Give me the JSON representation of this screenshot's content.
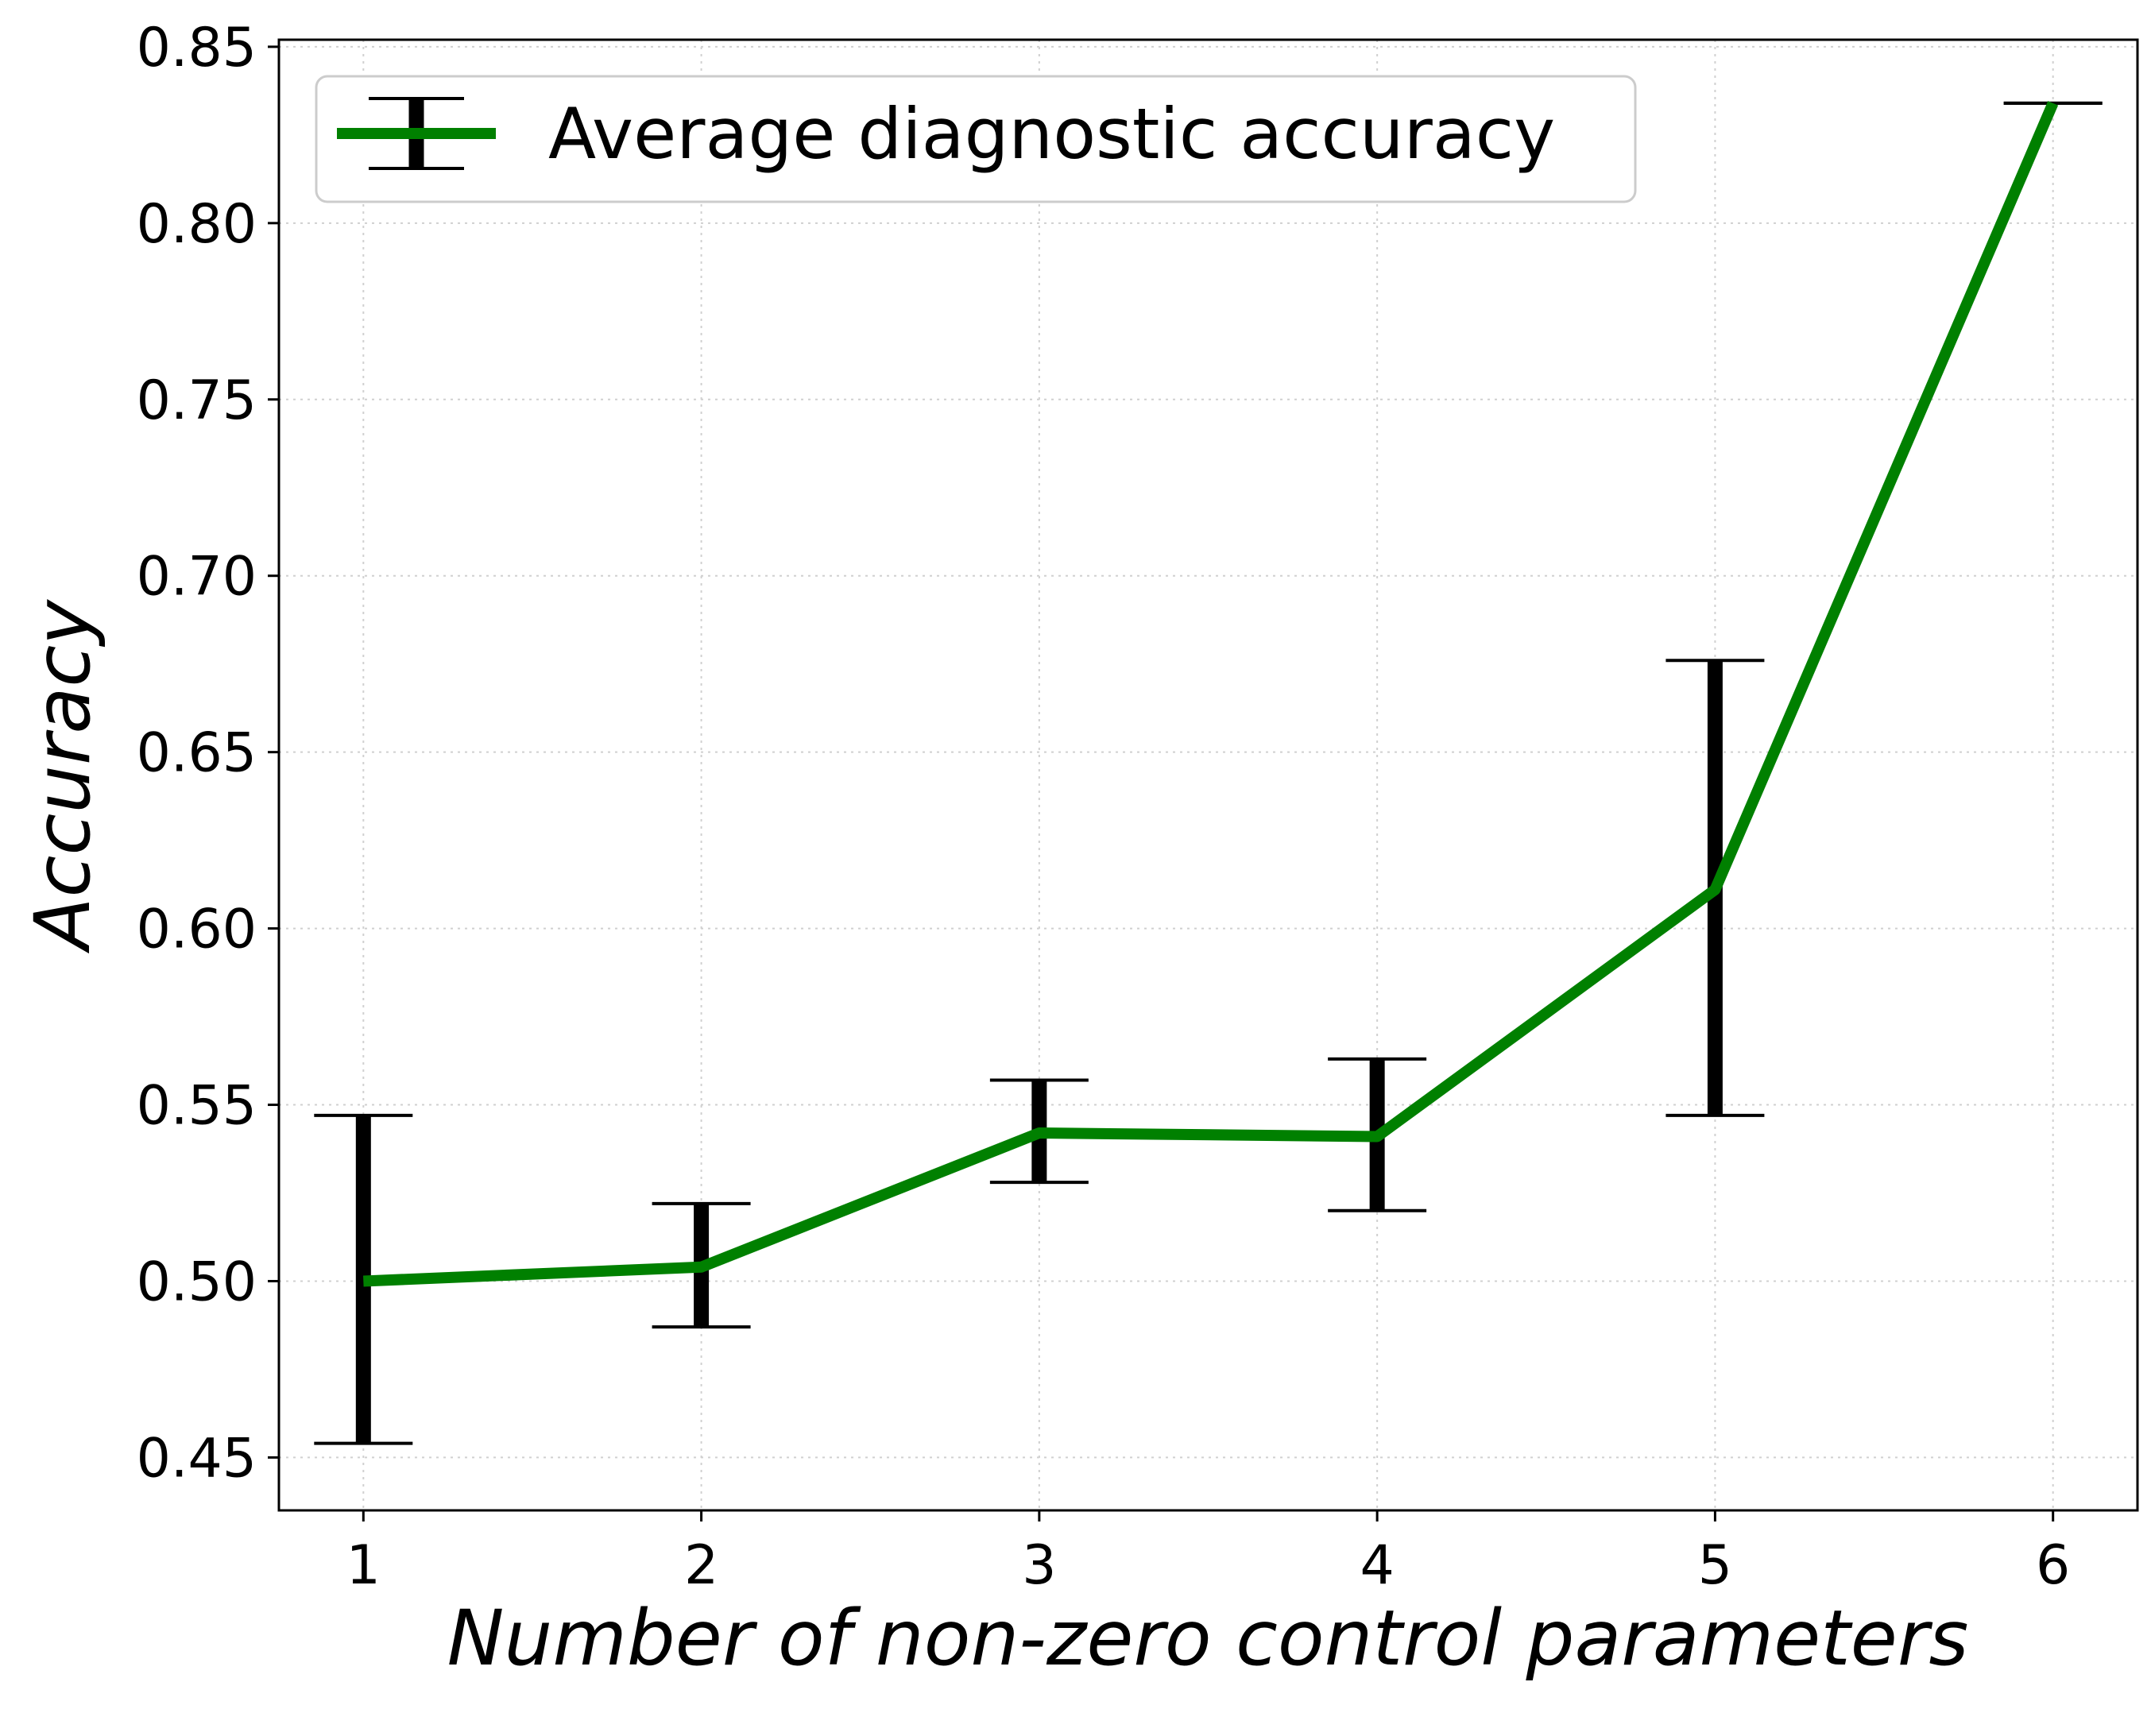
{
  "chart_data": {
    "type": "line",
    "xlabel": "Number of non-zero control parameters",
    "ylabel": "Accuracy",
    "x": [
      1,
      2,
      3,
      4,
      5,
      6
    ],
    "xticks": [
      "1",
      "2",
      "3",
      "4",
      "5",
      "6"
    ],
    "xlim": [
      0.75,
      6.25
    ],
    "ylim": [
      0.435,
      0.852
    ],
    "yticks": [
      "0.45",
      "0.50",
      "0.55",
      "0.60",
      "0.65",
      "0.70",
      "0.75",
      "0.80",
      "0.85"
    ],
    "ytick_values": [
      0.45,
      0.5,
      0.55,
      0.6,
      0.65,
      0.7,
      0.75,
      0.8,
      0.85
    ],
    "grid": true,
    "legend_position": "top-left",
    "series": [
      {
        "name": "Average diagnostic accuracy",
        "color": "#008000",
        "values": [
          0.5,
          0.504,
          0.542,
          0.541,
          0.611,
          0.834
        ],
        "error_lower": [
          0.454,
          0.487,
          0.528,
          0.52,
          0.547,
          0.834
        ],
        "error_upper": [
          0.547,
          0.522,
          0.557,
          0.563,
          0.676,
          0.834
        ]
      }
    ],
    "errorbar_color": "#000000"
  }
}
